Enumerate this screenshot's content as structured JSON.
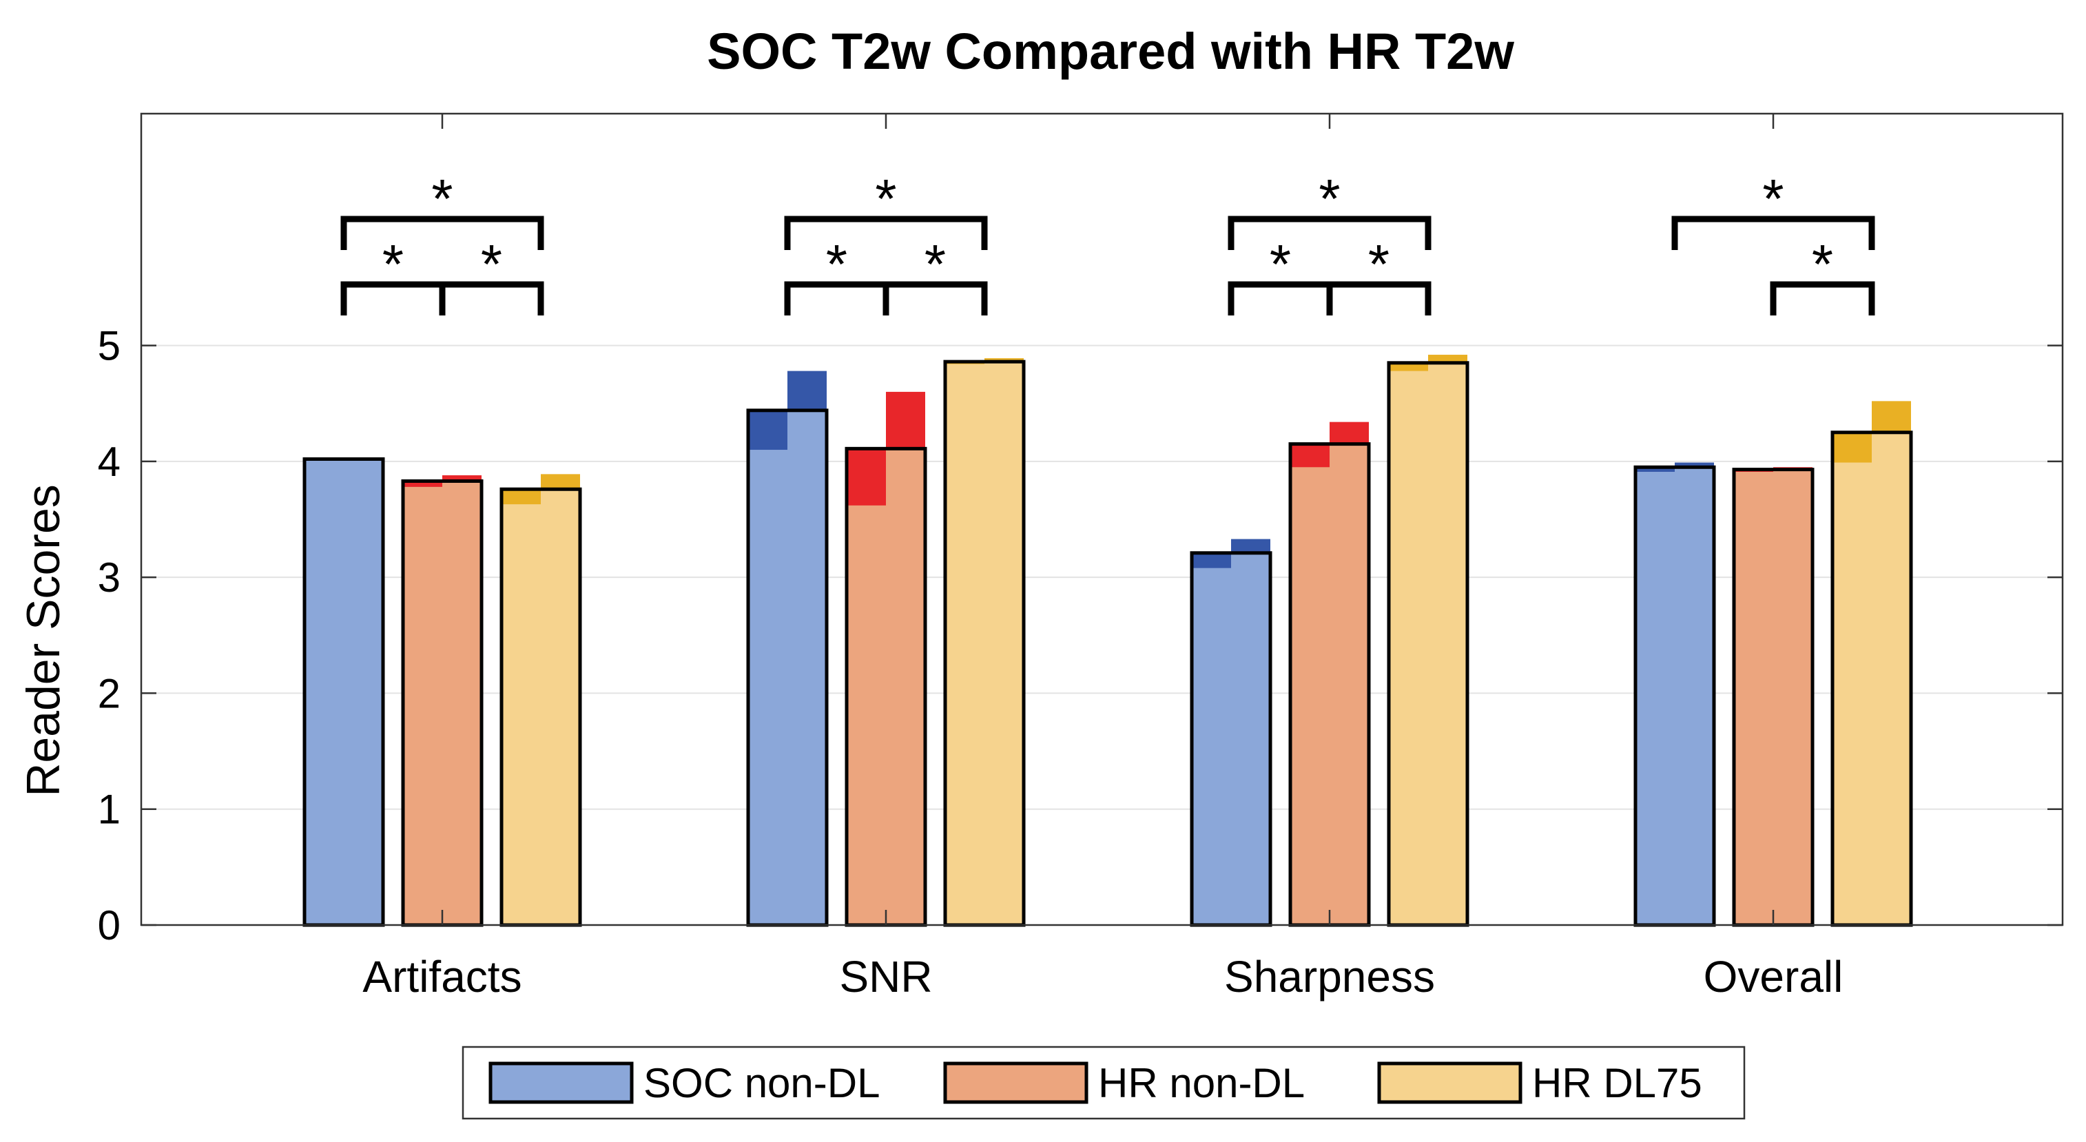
{
  "chart_data": {
    "type": "bar",
    "title": "SOC T2w Compared with HR T2w",
    "xlabel": "",
    "ylabel": "Reader Scores",
    "ylim": [
      0,
      7
    ],
    "yticks": [
      "0",
      "1",
      "2",
      "3",
      "4",
      "5"
    ],
    "grid": "horizontal",
    "legend_placement": "bottom",
    "categories": [
      "Artifacts",
      "SNR",
      "Sharpness",
      "Overall"
    ],
    "series": [
      {
        "name": "SOC non-DL",
        "color": "#8ba7d9",
        "accent": "#3557a8",
        "values": [
          4.02,
          4.44,
          3.21,
          3.95
        ],
        "range_low": [
          4.02,
          4.1,
          3.08,
          3.91
        ],
        "range_high": [
          4.02,
          4.78,
          3.33,
          3.99
        ]
      },
      {
        "name": "HR non-DL",
        "color": "#eca57e",
        "accent": "#e8262a",
        "values": [
          3.83,
          4.11,
          4.15,
          3.93
        ],
        "range_low": [
          3.78,
          3.62,
          3.95,
          3.91
        ],
        "range_high": [
          3.88,
          4.6,
          4.34,
          3.95
        ]
      },
      {
        "name": "HR DL75",
        "color": "#f6d38e",
        "accent": "#e9b024",
        "values": [
          3.76,
          4.86,
          4.85,
          4.25
        ],
        "range_low": [
          3.63,
          4.84,
          4.78,
          3.99
        ],
        "range_high": [
          3.89,
          4.89,
          4.92,
          4.52
        ]
      }
    ],
    "significance": [
      {
        "category": "Artifacts",
        "comparisons": [
          {
            "from": 0,
            "to": 2,
            "label": "*"
          },
          {
            "from": 0,
            "to": 1,
            "label": "*"
          },
          {
            "from": 1,
            "to": 2,
            "label": "*"
          }
        ]
      },
      {
        "category": "SNR",
        "comparisons": [
          {
            "from": 0,
            "to": 2,
            "label": "*"
          },
          {
            "from": 0,
            "to": 1,
            "label": "*"
          },
          {
            "from": 1,
            "to": 2,
            "label": "*"
          }
        ]
      },
      {
        "category": "Sharpness",
        "comparisons": [
          {
            "from": 0,
            "to": 2,
            "label": "*"
          },
          {
            "from": 0,
            "to": 1,
            "label": "*"
          },
          {
            "from": 1,
            "to": 2,
            "label": "*"
          }
        ]
      },
      {
        "category": "Overall",
        "comparisons": [
          {
            "from": 0,
            "to": 2,
            "label": "*"
          },
          {
            "from": 1,
            "to": 2,
            "label": "*"
          }
        ]
      }
    ]
  }
}
